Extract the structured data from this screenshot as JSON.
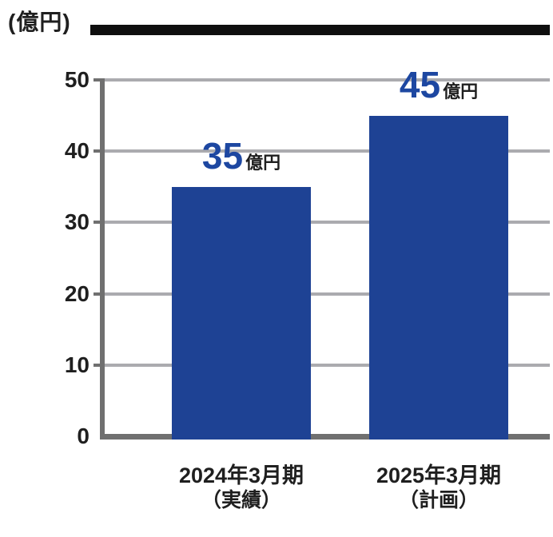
{
  "chart_data": {
    "type": "bar",
    "title": "(億円)",
    "unit": "億円",
    "ylim": [
      0,
      50
    ],
    "yticks": [
      0,
      10,
      20,
      30,
      40,
      50
    ],
    "grid": "horizontal",
    "legend": "none",
    "categories": [
      {
        "line1": "2024年3月期",
        "line2": "（実績）"
      },
      {
        "line1": "2025年3月期",
        "line2": "（計画）"
      }
    ],
    "values": [
      35,
      45
    ],
    "value_labels": [
      "35",
      "45"
    ],
    "colors": {
      "bar": "#1e4294",
      "value_number": "#1d47a1",
      "gridline": "#ababaf",
      "axis": "#707070",
      "text": "#1f1f1f",
      "top_rule": "#0f0f0f"
    }
  }
}
